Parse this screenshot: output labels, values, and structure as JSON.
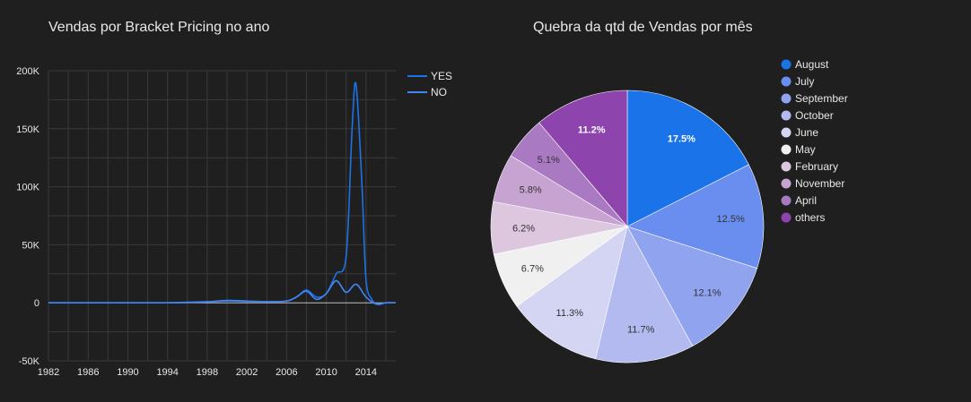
{
  "line_chart": {
    "title": "Vendas por Bracket Pricing no ano"
  },
  "pie_chart": {
    "title": "Quebra da qtd de Vendas por mês"
  },
  "chart_data": [
    {
      "type": "line",
      "title": "Vendas por Bracket Pricing no ano",
      "xlim": [
        1982,
        2017
      ],
      "ylim": [
        -50000,
        200000
      ],
      "x_ticks": [
        "1982",
        "1986",
        "1990",
        "1994",
        "1998",
        "2002",
        "2006",
        "2010",
        "2014"
      ],
      "y_ticks": [
        "200K",
        "150K",
        "100K",
        "50K",
        "0",
        "-50K"
      ],
      "y_tick_values": [
        200000,
        150000,
        100000,
        50000,
        0,
        -50000
      ],
      "grid": true,
      "legend": "top-right",
      "series": [
        {
          "name": "YES",
          "color": "#1a73e8",
          "points": [
            [
              1982,
              0
            ],
            [
              1990,
              0
            ],
            [
              1994,
              0
            ],
            [
              1996,
              500
            ],
            [
              1998,
              1000
            ],
            [
              2000,
              1500
            ],
            [
              2002,
              1200
            ],
            [
              2004,
              1000
            ],
            [
              2006,
              1500
            ],
            [
              2007,
              5000
            ],
            [
              2008,
              11000
            ],
            [
              2009,
              5000
            ],
            [
              2010,
              8000
            ],
            [
              2011,
              25000
            ],
            [
              2012,
              40000
            ],
            [
              2012.6,
              150000
            ],
            [
              2013,
              188000
            ],
            [
              2013.6,
              100000
            ],
            [
              2014,
              20000
            ],
            [
              2014.6,
              3000
            ],
            [
              2015.2,
              -1500
            ],
            [
              2016,
              0
            ],
            [
              2017,
              0
            ]
          ]
        },
        {
          "name": "NO",
          "color": "#4285f4",
          "points": [
            [
              1982,
              0
            ],
            [
              1990,
              0
            ],
            [
              1994,
              0
            ],
            [
              1996,
              300
            ],
            [
              1998,
              800
            ],
            [
              2000,
              2000
            ],
            [
              2002,
              1500
            ],
            [
              2004,
              1000
            ],
            [
              2006,
              1500
            ],
            [
              2007,
              5000
            ],
            [
              2008,
              10000
            ],
            [
              2009,
              3000
            ],
            [
              2010,
              8000
            ],
            [
              2011,
              19000
            ],
            [
              2012,
              9000
            ],
            [
              2013,
              16000
            ],
            [
              2014,
              5000
            ],
            [
              2015,
              -1000
            ],
            [
              2016,
              0
            ],
            [
              2017,
              0
            ]
          ]
        }
      ]
    },
    {
      "type": "pie",
      "title": "Quebra da qtd de Vendas por mês",
      "legend": "right",
      "slices": [
        {
          "label": "August",
          "value": 17.5,
          "display": "17.5%",
          "color": "#1a73e8",
          "label_color": "#ffffff"
        },
        {
          "label": "July",
          "value": 12.5,
          "display": "12.5%",
          "color": "#6a8df0",
          "label_color": "#333333"
        },
        {
          "label": "September",
          "value": 12.1,
          "display": "12.1%",
          "color": "#8fa3ee",
          "label_color": "#333333"
        },
        {
          "label": "October",
          "value": 11.7,
          "display": "11.7%",
          "color": "#b3baf0",
          "label_color": "#333333"
        },
        {
          "label": "June",
          "value": 11.3,
          "display": "11.3%",
          "color": "#d3d5f2",
          "label_color": "#333333"
        },
        {
          "label": "May",
          "value": 6.7,
          "display": "6.7%",
          "color": "#f0f0f0",
          "label_color": "#333333"
        },
        {
          "label": "February",
          "value": 6.2,
          "display": "6.2%",
          "color": "#dcc7df",
          "label_color": "#333333"
        },
        {
          "label": "November",
          "value": 5.8,
          "display": "5.8%",
          "color": "#c7a3d2",
          "label_color": "#333333"
        },
        {
          "label": "April",
          "value": 5.1,
          "display": "5.1%",
          "color": "#a979c2",
          "label_color": "#333333"
        },
        {
          "label": "others",
          "value": 11.2,
          "display": "11.2%",
          "color": "#8e44ad",
          "label_color": "#ffffff"
        }
      ]
    }
  ]
}
